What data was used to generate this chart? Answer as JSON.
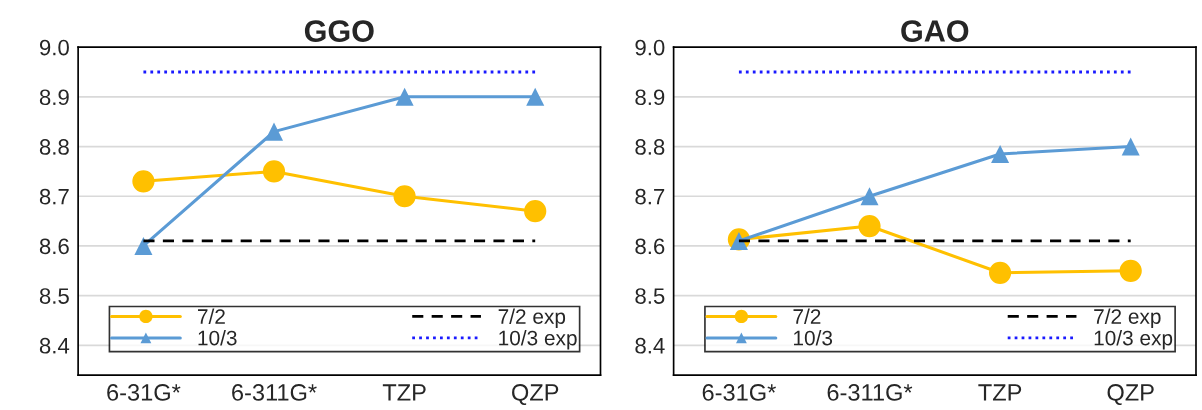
{
  "chart_data": [
    {
      "type": "line",
      "title": "GGO",
      "categories": [
        "6-31G*",
        "6-311G*",
        "TZP",
        "QZP"
      ],
      "ylim": [
        8.34,
        9.0
      ],
      "yticks": [
        8.4,
        8.5,
        8.6,
        8.7,
        8.8,
        8.9,
        {
          "value": 9,
          "label": "9.0"
        }
      ],
      "grid": "y",
      "legend": "bottom",
      "series": [
        {
          "name": "7/2",
          "color": "#ffc000",
          "marker": "circle",
          "line_style": "solid",
          "values": [
            8.73,
            8.75,
            8.7,
            8.67
          ]
        },
        {
          "name": "10/3",
          "color": "#5b9bd5",
          "marker": "triangle",
          "line_style": "solid",
          "values": [
            8.6,
            8.83,
            8.9,
            8.9
          ]
        },
        {
          "name": "7/2 exp",
          "color": "#000000",
          "marker": "none",
          "line_style": "dashed",
          "values": [
            8.61,
            8.61,
            8.61,
            8.61
          ]
        },
        {
          "name": "10/3 exp",
          "color": "#1a1aff",
          "marker": "none",
          "line_style": "dotted",
          "values": [
            8.95,
            8.95,
            8.95,
            8.95
          ]
        }
      ]
    },
    {
      "type": "line",
      "title": "GAO",
      "categories": [
        "6-31G*",
        "6-311G*",
        "TZP",
        "QZP"
      ],
      "ylim": [
        8.34,
        9.0
      ],
      "yticks": [
        8.4,
        8.5,
        8.6,
        8.7,
        8.8,
        8.9,
        {
          "value": 9,
          "label": "9.0"
        }
      ],
      "grid": "y",
      "legend": "bottom",
      "series": [
        {
          "name": "7/2",
          "color": "#ffc000",
          "marker": "circle",
          "line_style": "solid",
          "values": [
            8.613,
            8.64,
            8.546,
            8.55
          ]
        },
        {
          "name": "10/3",
          "color": "#5b9bd5",
          "marker": "triangle",
          "line_style": "solid",
          "values": [
            8.61,
            8.7,
            8.785,
            8.8
          ]
        },
        {
          "name": "7/2 exp",
          "color": "#000000",
          "marker": "none",
          "line_style": "dashed",
          "values": [
            8.61,
            8.61,
            8.61,
            8.61
          ]
        },
        {
          "name": "10/3 exp",
          "color": "#1a1aff",
          "marker": "none",
          "line_style": "dotted",
          "values": [
            8.95,
            8.95,
            8.95,
            8.95
          ]
        }
      ]
    }
  ]
}
